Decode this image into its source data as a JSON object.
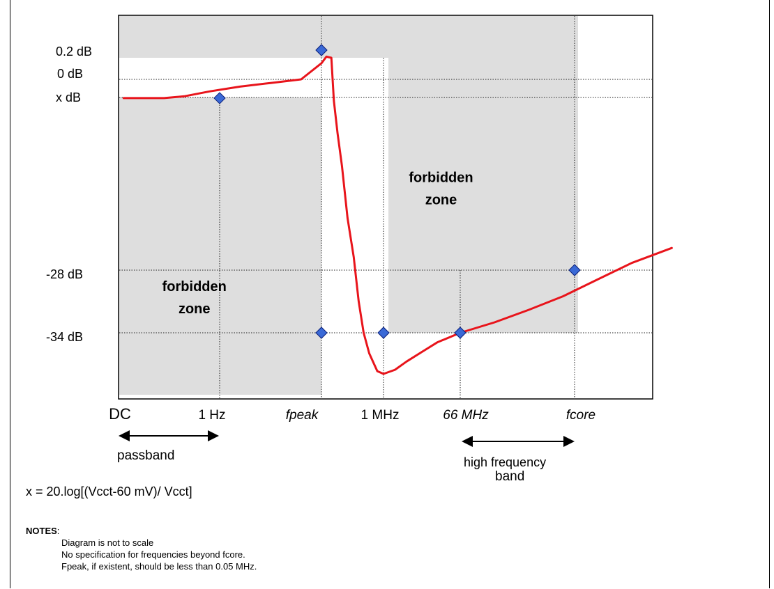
{
  "chart_data": {
    "type": "line",
    "x_categories": [
      "DC",
      "1 Hz",
      "fpeak",
      "1 MHz",
      "66 MHz",
      "fcore"
    ],
    "x_italic": [
      false,
      false,
      true,
      false,
      true,
      true
    ],
    "y_tick_labels": [
      "0.2 dB",
      "0 dB",
      "x dB",
      "-28 dB",
      "-34 dB"
    ],
    "y_ticks_value": [
      0.2,
      0,
      -1.5,
      -28,
      -34
    ],
    "series": [
      {
        "color": "#e8141b",
        "points": [
          [
            0.05,
            -1.6
          ],
          [
            0.45,
            -1.6
          ],
          [
            0.65,
            -1.4
          ],
          [
            0.9,
            -1.0
          ],
          [
            1.2,
            -0.6
          ],
          [
            1.5,
            -0.3
          ],
          [
            1.8,
            0
          ],
          [
            2.0,
            0.15
          ],
          [
            2.08,
            0.25
          ],
          [
            2.16,
            0.2
          ],
          [
            2.2,
            -2
          ],
          [
            2.26,
            -7
          ],
          [
            2.33,
            -12
          ],
          [
            2.42,
            -20
          ],
          [
            2.52,
            -26
          ],
          [
            2.6,
            -31
          ],
          [
            2.68,
            -34
          ],
          [
            2.77,
            -35.5
          ],
          [
            2.9,
            -36.8
          ],
          [
            3.0,
            -37
          ],
          [
            3.15,
            -36.7
          ],
          [
            3.3,
            -36.1
          ],
          [
            3.5,
            -35.4
          ],
          [
            3.7,
            -34.7
          ],
          [
            4.0,
            -34.0
          ],
          [
            4.3,
            -33.0
          ],
          [
            4.6,
            -31.8
          ],
          [
            4.9,
            -30.5
          ],
          [
            5.2,
            -28.9
          ],
          [
            5.5,
            -26.9
          ],
          [
            5.85,
            -24.6
          ]
        ]
      }
    ],
    "markers": [
      {
        "x": 1.0,
        "y": -1.6
      },
      {
        "x": 2.0,
        "y": 0.55
      },
      {
        "x": 2.0,
        "y": -34
      },
      {
        "x": 3.0,
        "y": -34
      },
      {
        "x": 4.0,
        "y": -34
      },
      {
        "x": 5.0,
        "y": -28
      }
    ],
    "zone_labels": [
      {
        "lines": [
          "forbidden",
          "zone"
        ],
        "x": 3.75,
        "y": -14.5
      },
      {
        "lines": [
          "forbidden",
          "zone"
        ],
        "x": 0.75,
        "y": -30
      }
    ],
    "colors": {
      "zone": "#dedede",
      "curve": "#e8141b",
      "marker_fill": "#3a69d6",
      "marker_stroke": "#0a1e78"
    }
  },
  "annotations": {
    "passband": "passband",
    "high_frequency_line1": "high frequency",
    "high_frequency_line2": "band"
  },
  "formula": "x = 20.log[(Vcct-60 mV)/ Vcct]",
  "notes": {
    "heading": "NOTES",
    "lines": [
      "Diagram is not to scale",
      "No specification for frequencies beyond fcore.",
      "Fpeak, if existent, should be less than 0.05 MHz."
    ]
  }
}
